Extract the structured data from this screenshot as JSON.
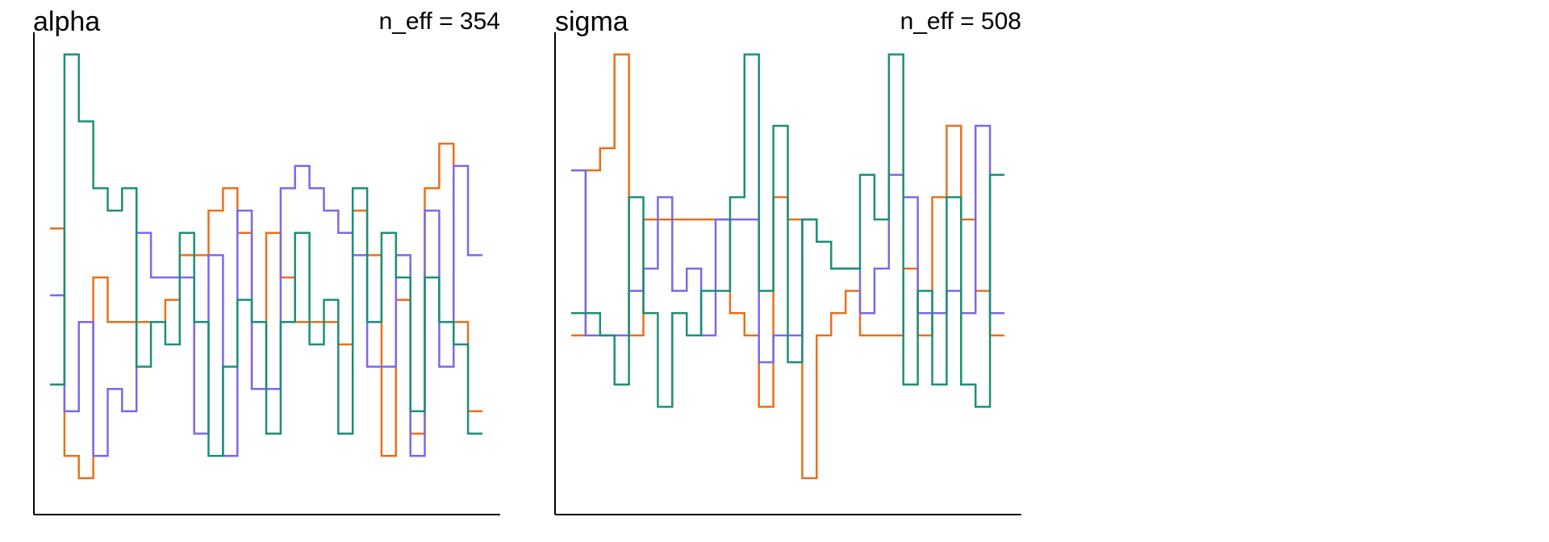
{
  "chart_data": [
    {
      "type": "line",
      "style": "step",
      "title": "alpha",
      "annotation": "n_eff = 354",
      "xlabel": "",
      "ylabel": "",
      "x": [
        1,
        2,
        3,
        4,
        5,
        6,
        7,
        8,
        9,
        10,
        11,
        12,
        13,
        14,
        15,
        16,
        17,
        18,
        19,
        20,
        21,
        22,
        23,
        24,
        25,
        26,
        27,
        28,
        29,
        30
      ],
      "ylim": [
        0,
        100
      ],
      "axes": {
        "x_ticks": false,
        "y_ticks": false,
        "grid": false
      },
      "series": [
        {
          "color": "#e8701a",
          "values": [
            60,
            9,
            4,
            49,
            39,
            39,
            39,
            39,
            44,
            54,
            54,
            64,
            69,
            59,
            24,
            59,
            49,
            39,
            39,
            39,
            34,
            64,
            54,
            9,
            44,
            14,
            69,
            79,
            39,
            19
          ]
        },
        {
          "color": "#7b68ee",
          "values": [
            45,
            19,
            39,
            9,
            24,
            19,
            59,
            49,
            49,
            49,
            14,
            54,
            9,
            64,
            24,
            24,
            69,
            74,
            69,
            64,
            59,
            54,
            29,
            29,
            54,
            9,
            64,
            29,
            74,
            54
          ]
        },
        {
          "color": "#1a9077",
          "values": [
            25,
            99,
            84,
            69,
            64,
            69,
            29,
            39,
            34,
            59,
            39,
            9,
            29,
            44,
            39,
            14,
            39,
            59,
            34,
            44,
            14,
            69,
            39,
            59,
            49,
            19,
            49,
            39,
            34,
            14
          ]
        }
      ]
    },
    {
      "type": "line",
      "style": "step",
      "title": "sigma",
      "annotation": "n_eff = 508",
      "xlabel": "",
      "ylabel": "",
      "x": [
        1,
        2,
        3,
        4,
        5,
        6,
        7,
        8,
        9,
        10,
        11,
        12,
        13,
        14,
        15,
        16,
        17,
        18,
        19,
        20,
        21,
        22,
        23,
        24,
        25,
        26,
        27,
        28,
        29,
        30
      ],
      "ylim": [
        0,
        100
      ],
      "axes": {
        "x_ticks": false,
        "y_ticks": false,
        "grid": false
      },
      "series": [
        {
          "color": "#e8701a",
          "values": [
            36,
            73,
            78,
            99,
            36,
            62,
            62,
            62,
            62,
            62,
            62,
            41,
            36,
            20,
            67,
            62,
            4,
            36,
            41,
            46,
            36,
            36,
            36,
            51,
            36,
            67,
            83,
            62,
            46,
            36
          ]
        },
        {
          "color": "#7b68ee",
          "values": [
            73,
            36,
            36,
            36,
            46,
            51,
            67,
            46,
            51,
            36,
            62,
            62,
            62,
            30,
            36,
            36,
            62,
            57,
            51,
            51,
            41,
            51,
            72,
            67,
            41,
            41,
            46,
            41,
            83,
            41
          ]
        },
        {
          "color": "#1a9077",
          "values": [
            41,
            41,
            36,
            25,
            67,
            41,
            20,
            41,
            36,
            46,
            46,
            67,
            99,
            46,
            83,
            30,
            62,
            57,
            51,
            51,
            72,
            62,
            99,
            25,
            46,
            25,
            67,
            25,
            20,
            72
          ]
        }
      ]
    }
  ]
}
